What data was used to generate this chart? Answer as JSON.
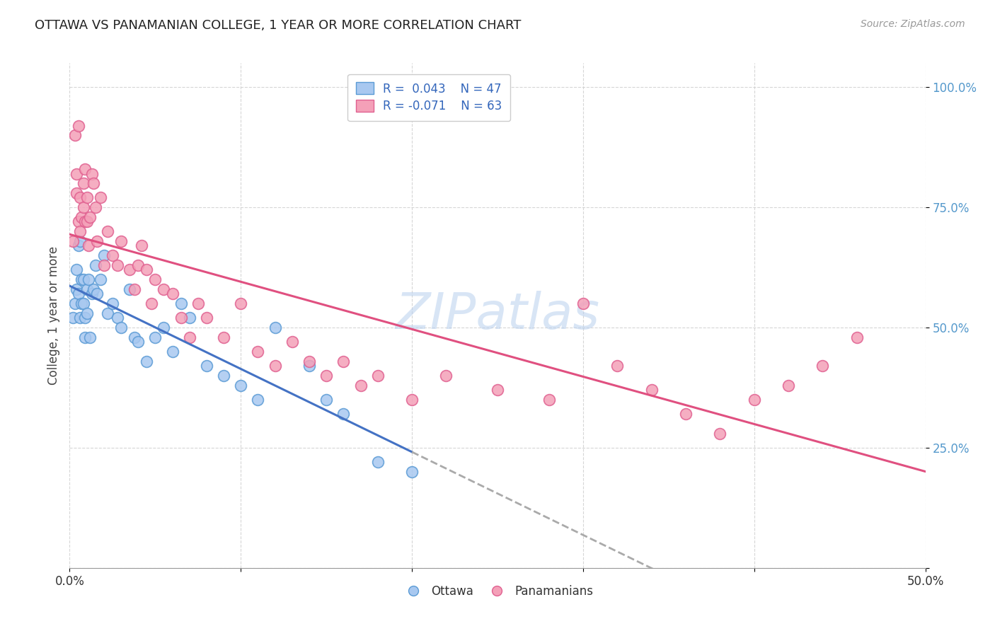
{
  "title": "OTTAWA VS PANAMANIAN COLLEGE, 1 YEAR OR MORE CORRELATION CHART",
  "source": "Source: ZipAtlas.com",
  "ylabel": "College, 1 year or more",
  "y_tick_labels": [
    "",
    "25.0%",
    "50.0%",
    "75.0%",
    "100.0%"
  ],
  "y_tick_positions": [
    0.0,
    0.25,
    0.5,
    0.75,
    1.0
  ],
  "xlim": [
    0.0,
    0.5
  ],
  "ylim": [
    0.0,
    1.05
  ],
  "color_ottawa": "#a8c8f0",
  "color_ottawa_edge": "#5b9bd5",
  "color_pana": "#f4a0b8",
  "color_pana_edge": "#e06090",
  "color_ottawa_line": "#4472c4",
  "color_pana_line": "#e05080",
  "color_dash": "#aaaaaa",
  "background_color": "#ffffff",
  "watermark": "ZIPatlas",
  "ottawa_x": [
    0.002,
    0.003,
    0.004,
    0.004,
    0.005,
    0.005,
    0.006,
    0.006,
    0.007,
    0.007,
    0.008,
    0.008,
    0.009,
    0.009,
    0.01,
    0.01,
    0.011,
    0.012,
    0.013,
    0.014,
    0.015,
    0.016,
    0.018,
    0.02,
    0.022,
    0.025,
    0.028,
    0.03,
    0.035,
    0.038,
    0.04,
    0.045,
    0.05,
    0.055,
    0.06,
    0.065,
    0.07,
    0.08,
    0.09,
    0.1,
    0.11,
    0.12,
    0.14,
    0.15,
    0.16,
    0.18,
    0.2
  ],
  "ottawa_y": [
    0.52,
    0.55,
    0.58,
    0.62,
    0.57,
    0.67,
    0.68,
    0.52,
    0.6,
    0.55,
    0.55,
    0.6,
    0.52,
    0.48,
    0.53,
    0.58,
    0.6,
    0.48,
    0.57,
    0.58,
    0.63,
    0.57,
    0.6,
    0.65,
    0.53,
    0.55,
    0.52,
    0.5,
    0.58,
    0.48,
    0.47,
    0.43,
    0.48,
    0.5,
    0.45,
    0.55,
    0.52,
    0.42,
    0.4,
    0.38,
    0.35,
    0.5,
    0.42,
    0.35,
    0.32,
    0.22,
    0.2
  ],
  "pana_x": [
    0.002,
    0.003,
    0.004,
    0.004,
    0.005,
    0.005,
    0.006,
    0.006,
    0.007,
    0.008,
    0.008,
    0.009,
    0.009,
    0.01,
    0.01,
    0.011,
    0.012,
    0.013,
    0.014,
    0.015,
    0.016,
    0.018,
    0.02,
    0.022,
    0.025,
    0.028,
    0.03,
    0.035,
    0.038,
    0.04,
    0.042,
    0.045,
    0.048,
    0.05,
    0.055,
    0.06,
    0.065,
    0.07,
    0.075,
    0.08,
    0.09,
    0.1,
    0.11,
    0.12,
    0.13,
    0.14,
    0.15,
    0.16,
    0.17,
    0.18,
    0.2,
    0.22,
    0.25,
    0.28,
    0.3,
    0.32,
    0.34,
    0.36,
    0.38,
    0.4,
    0.42,
    0.44,
    0.46
  ],
  "pana_y": [
    0.68,
    0.9,
    0.82,
    0.78,
    0.92,
    0.72,
    0.77,
    0.7,
    0.73,
    0.8,
    0.75,
    0.83,
    0.72,
    0.77,
    0.72,
    0.67,
    0.73,
    0.82,
    0.8,
    0.75,
    0.68,
    0.77,
    0.63,
    0.7,
    0.65,
    0.63,
    0.68,
    0.62,
    0.58,
    0.63,
    0.67,
    0.62,
    0.55,
    0.6,
    0.58,
    0.57,
    0.52,
    0.48,
    0.55,
    0.52,
    0.48,
    0.55,
    0.45,
    0.42,
    0.47,
    0.43,
    0.4,
    0.43,
    0.38,
    0.4,
    0.35,
    0.4,
    0.37,
    0.35,
    0.55,
    0.42,
    0.37,
    0.32,
    0.28,
    0.35,
    0.38,
    0.42,
    0.48
  ]
}
